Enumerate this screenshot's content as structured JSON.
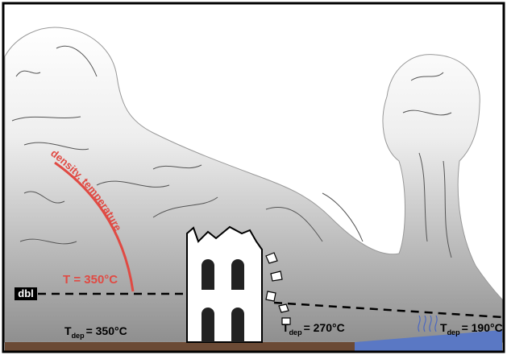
{
  "labels": {
    "gradient": "density, temperature",
    "threshold": "T = 350°C",
    "dbl": "dbl",
    "deposits": [
      {
        "symbol": "T",
        "subscript": "dep",
        "value": "= 350°C"
      },
      {
        "symbol": "T",
        "subscript": "dep",
        "value": "= 270°C"
      },
      {
        "symbol": "T",
        "subscript": "dep",
        "value": "= 190°C"
      }
    ]
  }
}
